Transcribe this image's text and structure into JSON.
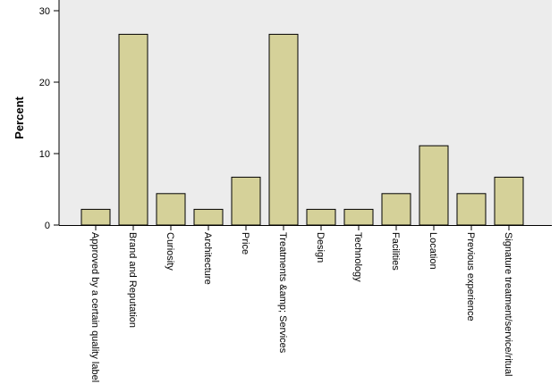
{
  "chart_data": {
    "type": "bar",
    "title": "",
    "xlabel": "",
    "ylabel": "Percent",
    "ylim": [
      0,
      30
    ],
    "yticks": [
      0,
      10,
      20,
      30
    ],
    "grid": false,
    "colors": {
      "bar": "#d5d199",
      "bar_stroke": "#000000",
      "plot_bg": "#ececec"
    },
    "categories": [
      "Approved by a certain quality label",
      "Brand and Reputation",
      "Curiosity",
      "Architecture",
      "Price",
      "Treatments &amp; Services",
      "Design",
      "Technology",
      "Facilities",
      "Location",
      "Previous experience",
      "Signature treatment/service/ritual"
    ],
    "values": [
      2.2,
      26.7,
      4.4,
      2.2,
      6.7,
      26.7,
      2.2,
      2.2,
      4.4,
      11.1,
      4.4,
      6.7
    ]
  }
}
